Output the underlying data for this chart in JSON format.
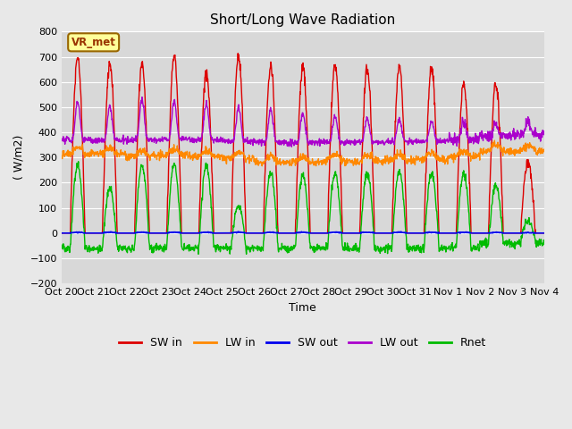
{
  "title": "Short/Long Wave Radiation",
  "ylabel": "( W/m2)",
  "xlabel": "Time",
  "ylim": [
    -200,
    800
  ],
  "yticks": [
    -200,
    -100,
    0,
    100,
    200,
    300,
    400,
    500,
    600,
    700,
    800
  ],
  "bg_color": "#e8e8e8",
  "plot_bg_color": "#d8d8d8",
  "grid_color": "#ffffff",
  "annotation_text": "VR_met",
  "annotation_bg": "#ffff99",
  "annotation_border": "#996600",
  "series": {
    "SW_in": {
      "color": "#dd0000",
      "lw": 1.0
    },
    "LW_in": {
      "color": "#ff8800",
      "lw": 1.0
    },
    "SW_out": {
      "color": "#0000ee",
      "lw": 1.2
    },
    "LW_out": {
      "color": "#aa00cc",
      "lw": 1.0
    },
    "Rnet": {
      "color": "#00bb00",
      "lw": 1.0
    }
  },
  "legend": [
    {
      "label": "SW in",
      "color": "#dd0000"
    },
    {
      "label": "LW in",
      "color": "#ff8800"
    },
    {
      "label": "SW out",
      "color": "#0000ee"
    },
    {
      "label": "LW out",
      "color": "#aa00cc"
    },
    {
      "label": "Rnet",
      "color": "#00bb00"
    }
  ],
  "xtick_labels": [
    "Oct 20",
    "Oct 21",
    "Oct 22",
    "Oct 23",
    "Oct 24",
    "Oct 25",
    "Oct 26",
    "Oct 27",
    "Oct 28",
    "Oct 29",
    "Oct 30",
    "Oct 31",
    "Nov 1",
    "Nov 2",
    "Nov 3",
    "Nov 4"
  ],
  "n_days": 15,
  "points_per_day": 96,
  "peak_sw": [
    700,
    675,
    670,
    700,
    645,
    700,
    665,
    660,
    665,
    655,
    660,
    650,
    595,
    590,
    280
  ],
  "lw_base": [
    315,
    315,
    305,
    310,
    305,
    295,
    280,
    280,
    285,
    285,
    288,
    292,
    302,
    325,
    325
  ],
  "lw_out_base": [
    370,
    368,
    370,
    372,
    370,
    365,
    360,
    358,
    360,
    360,
    362,
    365,
    368,
    375,
    378
  ],
  "lw_out_peak": [
    520,
    500,
    535,
    520,
    515,
    495,
    490,
    475,
    460,
    455,
    450,
    445,
    440,
    430,
    430
  ],
  "rnet_base": [
    -60,
    -60,
    -60,
    -60,
    -60,
    -60,
    -60,
    -60,
    -60,
    -60,
    -60,
    -60,
    -60,
    -40,
    -40
  ],
  "rnet_peak": [
    270,
    175,
    270,
    275,
    270,
    110,
    240,
    230,
    240,
    240,
    245,
    235,
    235,
    190,
    50
  ]
}
